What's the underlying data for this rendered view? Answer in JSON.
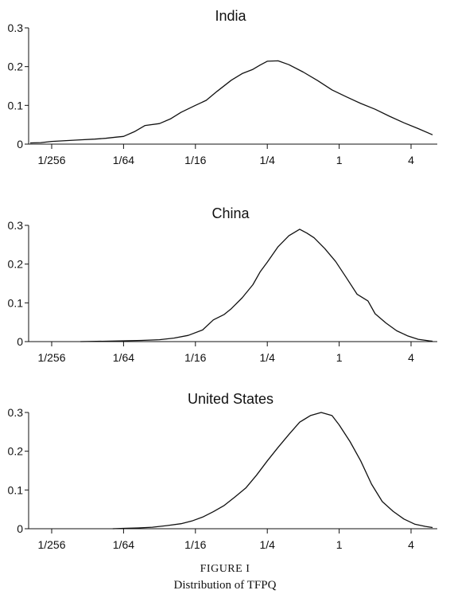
{
  "chart_data": [
    {
      "type": "line",
      "title": "India",
      "x_ticks": [
        "1/256",
        "1/64",
        "1/16",
        "1/4",
        "1",
        "4"
      ],
      "y_ticks": [
        "0",
        "0.1",
        "0.2",
        "0.3"
      ],
      "x_scale": "log2",
      "xlim_log2": [
        -8.6,
        2.6
      ],
      "ylim": [
        0,
        0.3
      ],
      "x_log2": [
        -8.6,
        -8.3,
        -8,
        -7.6,
        -7.2,
        -6.8,
        -6.5,
        -6.2,
        -6,
        -5.7,
        -5.4,
        -5,
        -4.7,
        -4.4,
        -4,
        -3.7,
        -3.4,
        -3,
        -2.7,
        -2.4,
        -2.2,
        -2,
        -1.7,
        -1.4,
        -1,
        -0.6,
        -0.2,
        0.2,
        0.6,
        1,
        1.4,
        1.8,
        2.2,
        2.6
      ],
      "y": [
        0.003,
        0.004,
        0.007,
        0.009,
        0.011,
        0.013,
        0.015,
        0.018,
        0.02,
        0.032,
        0.048,
        0.053,
        0.065,
        0.082,
        0.1,
        0.113,
        0.136,
        0.165,
        0.182,
        0.193,
        0.204,
        0.214,
        0.215,
        0.205,
        0.186,
        0.164,
        0.14,
        0.122,
        0.105,
        0.09,
        0.072,
        0.055,
        0.04,
        0.024
      ]
    },
    {
      "type": "line",
      "title": "China",
      "x_ticks": [
        "1/256",
        "1/64",
        "1/16",
        "1/4",
        "1",
        "4"
      ],
      "y_ticks": [
        "0",
        "0.1",
        "0.2",
        "0.3"
      ],
      "x_scale": "log2",
      "xlim_log2": [
        -8.6,
        2.6
      ],
      "ylim": [
        0,
        0.3
      ],
      "x_log2": [
        -7.2,
        -6.5,
        -6,
        -5.5,
        -5,
        -4.6,
        -4.2,
        -3.8,
        -3.5,
        -3.2,
        -3,
        -2.7,
        -2.4,
        -2.2,
        -2,
        -1.7,
        -1.4,
        -1.1,
        -0.9,
        -0.7,
        -0.4,
        -0.1,
        0.2,
        0.5,
        0.8,
        1,
        1.3,
        1.6,
        1.9,
        2.2,
        2.5,
        2.6
      ],
      "y": [
        0,
        0.001,
        0.002,
        0.003,
        0.005,
        0.009,
        0.016,
        0.03,
        0.056,
        0.07,
        0.085,
        0.113,
        0.147,
        0.18,
        0.205,
        0.245,
        0.273,
        0.29,
        0.28,
        0.268,
        0.24,
        0.207,
        0.165,
        0.122,
        0.105,
        0.072,
        0.048,
        0.028,
        0.015,
        0.006,
        0.002,
        0.001
      ]
    },
    {
      "type": "line",
      "title": "United States",
      "x_ticks": [
        "1/256",
        "1/64",
        "1/16",
        "1/4",
        "1",
        "4"
      ],
      "y_ticks": [
        "0",
        "0.1",
        "0.2",
        "0.3"
      ],
      "x_scale": "log2",
      "xlim_log2": [
        -8.6,
        2.6
      ],
      "ylim": [
        0,
        0.3
      ],
      "x_log2": [
        -6.3,
        -6,
        -5.6,
        -5.2,
        -4.8,
        -4.4,
        -4.1,
        -3.8,
        -3.5,
        -3.2,
        -2.9,
        -2.6,
        -2.3,
        -2,
        -1.7,
        -1.4,
        -1.1,
        -0.8,
        -0.5,
        -0.2,
        0,
        0.3,
        0.6,
        0.9,
        1.2,
        1.5,
        1.8,
        2.1,
        2.4,
        2.6
      ],
      "y": [
        0,
        0.001,
        0.002,
        0.004,
        0.008,
        0.013,
        0.02,
        0.03,
        0.044,
        0.06,
        0.082,
        0.105,
        0.138,
        0.175,
        0.21,
        0.243,
        0.275,
        0.292,
        0.3,
        0.292,
        0.268,
        0.225,
        0.175,
        0.115,
        0.07,
        0.045,
        0.025,
        0.012,
        0.006,
        0.003
      ]
    }
  ],
  "caption": {
    "label_prefix": "F",
    "label_rest": "IGURE I",
    "title": "Distribution of TFPQ"
  }
}
